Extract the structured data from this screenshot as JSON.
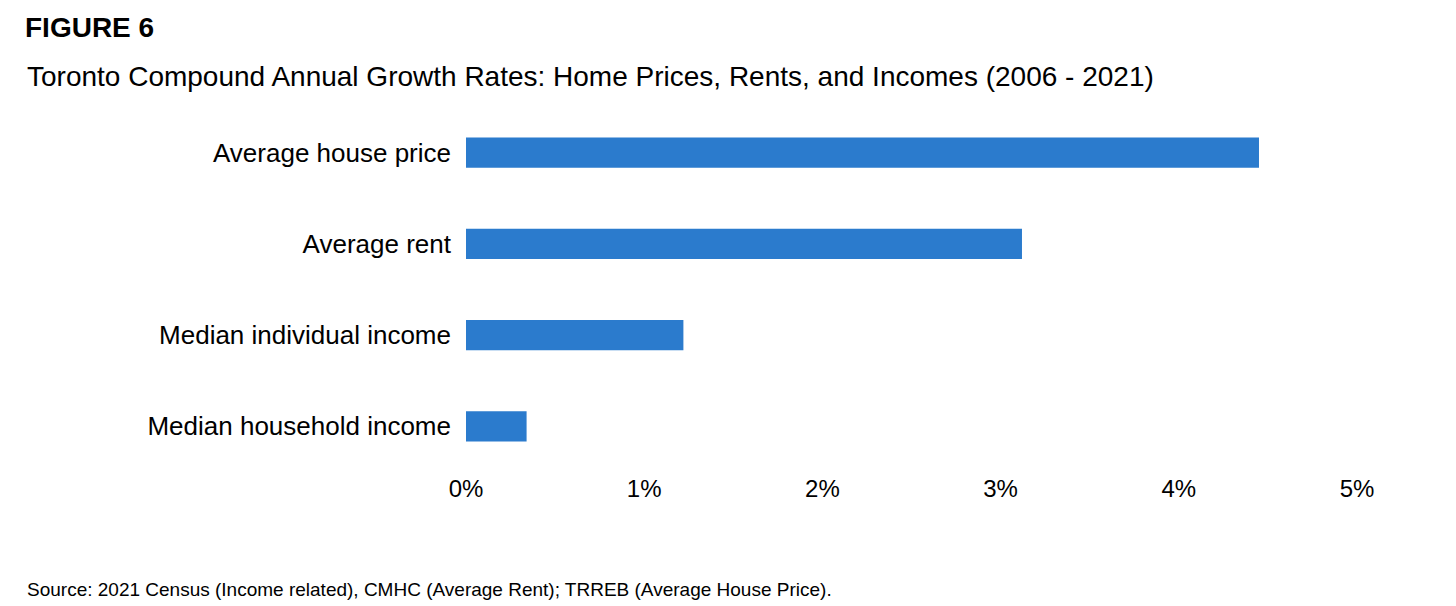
{
  "chart_data": {
    "type": "bar",
    "orientation": "horizontal",
    "title": "FIGURE 6",
    "subtitle": "Toronto Compound Annual Growth Rates: Home Prices, Rents, and Incomes (2006 - 2021)",
    "source": "Source: 2021 Census (Income related), CMHC (Average Rent); TRREB (Average House Price).",
    "categories": [
      "Average house price",
      "Average rent",
      "Median individual income",
      "Median household income"
    ],
    "values": [
      4.45,
      3.12,
      1.22,
      0.34
    ],
    "color": "#2b7bcd",
    "xlim": [
      0,
      5
    ],
    "xticks": [
      {
        "value": 0,
        "label": "0%"
      },
      {
        "value": 1,
        "label": "1%"
      },
      {
        "value": 2,
        "label": "2%"
      },
      {
        "value": 3,
        "label": "3%"
      },
      {
        "value": 4,
        "label": "4%"
      },
      {
        "value": 5,
        "label": "5%"
      }
    ],
    "grid": false
  }
}
